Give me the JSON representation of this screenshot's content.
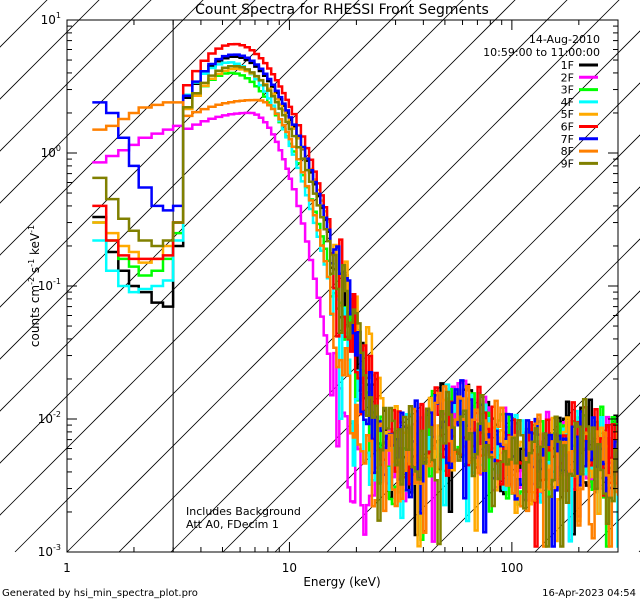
{
  "chart_data": {
    "type": "line",
    "title": "Count Spectra for RHESSI Front Segments",
    "xlabel": "Energy (keV)",
    "ylabel_parts": {
      "pre": "counts cm",
      "e1": "-2",
      "mid": " s",
      "e2": "-1",
      "post": " keV",
      "e3": "-1"
    },
    "x_scale": "log",
    "y_scale": "log",
    "xlim": [
      1.0,
      300.0
    ],
    "ylim": [
      0.001,
      10.0
    ],
    "x_ticks": [
      {
        "value": 1,
        "label": "1"
      },
      {
        "value": 10,
        "label": "10"
      },
      {
        "value": 100,
        "label": "100"
      }
    ],
    "y_ticks": [
      {
        "value": 0.001,
        "base": "10",
        "exp": "-3"
      },
      {
        "value": 0.01,
        "base": "10",
        "exp": "-2"
      },
      {
        "value": 0.1,
        "base": "10",
        "exp": "-1"
      },
      {
        "value": 1,
        "base": "10",
        "exp": "0"
      },
      {
        "value": 10,
        "base": "10",
        "exp": "1"
      }
    ],
    "hatched_region_kev": [
      1.0,
      3.0
    ],
    "date": "14-Aug-2010",
    "time_range": "10:59:00 to 11:00:00",
    "annotations": [
      "Includes Background",
      "Att A0, FDecim 1"
    ],
    "series": [
      {
        "name": "1F",
        "color": "#000000",
        "seed": 11,
        "low_kev": [
          1.3,
          1.5,
          1.7,
          1.9,
          2.1,
          2.4,
          2.7,
          3.0
        ],
        "low": [
          0.33,
          0.18,
          0.13,
          0.1,
          0.09,
          0.075,
          0.07,
          0.2
        ],
        "peak_kev": 5.5,
        "peak": 5.3,
        "w_lo": 0.42,
        "w_hi": 0.4,
        "knee_kev": 7.0
      },
      {
        "name": "2F",
        "color": "#ff00ff",
        "seed": 22,
        "low_kev": [
          1.3,
          1.5,
          1.7,
          1.9,
          2.1,
          2.4,
          2.7,
          3.0
        ],
        "low": [
          0.85,
          0.95,
          1.05,
          1.15,
          1.3,
          1.4,
          1.5,
          1.6
        ],
        "peak_kev": 6.5,
        "peak": 2.0,
        "w_lo": 0.9,
        "w_hi": 0.28,
        "knee_kev": 9.5
      },
      {
        "name": "3F",
        "color": "#00ff00",
        "seed": 33,
        "low_kev": [
          1.3,
          1.5,
          1.7,
          1.9,
          2.1,
          2.4,
          2.7,
          3.0
        ],
        "low": [
          0.3,
          0.22,
          0.16,
          0.14,
          0.12,
          0.13,
          0.16,
          0.25
        ],
        "peak_kev": 5.3,
        "peak": 4.0,
        "w_lo": 0.42,
        "w_hi": 0.4,
        "knee_kev": 7.0
      },
      {
        "name": "4F",
        "color": "#00ffff",
        "seed": 44,
        "low_kev": [
          1.3,
          1.5,
          1.7,
          1.9,
          2.1,
          2.4,
          2.7,
          3.0
        ],
        "low": [
          0.22,
          0.13,
          0.1,
          0.09,
          0.095,
          0.1,
          0.11,
          0.22
        ],
        "peak_kev": 5.2,
        "peak": 4.8,
        "w_lo": 0.42,
        "w_hi": 0.38,
        "knee_kev": 7.0
      },
      {
        "name": "5F",
        "color": "#ffaa00",
        "seed": 55,
        "low_kev": [
          1.3,
          1.5,
          1.7,
          1.9,
          2.1,
          2.4,
          2.7,
          3.0
        ],
        "low": [
          0.3,
          0.25,
          0.2,
          0.18,
          0.15,
          0.16,
          0.2,
          0.3
        ],
        "peak_kev": 5.6,
        "peak": 4.3,
        "w_lo": 0.44,
        "w_hi": 0.42,
        "knee_kev": 7.0
      },
      {
        "name": "6F",
        "color": "#ff0000",
        "seed": 66,
        "low_kev": [
          1.3,
          1.5,
          1.7,
          1.9,
          2.1,
          2.4,
          2.7,
          3.0
        ],
        "low": [
          0.4,
          0.22,
          0.17,
          0.16,
          0.16,
          0.16,
          0.17,
          0.3
        ],
        "peak_kev": 5.5,
        "peak": 6.6,
        "w_lo": 0.42,
        "w_hi": 0.4,
        "knee_kev": 7.0
      },
      {
        "name": "7F",
        "color": "#0000ff",
        "seed": 77,
        "low_kev": [
          1.3,
          1.5,
          1.7,
          1.9,
          2.1,
          2.4,
          2.7,
          3.0
        ],
        "low": [
          2.4,
          2.0,
          1.3,
          0.8,
          0.55,
          0.4,
          0.37,
          0.4
        ],
        "peak_kev": 5.5,
        "peak": 5.5,
        "w_lo": 0.42,
        "w_hi": 0.4,
        "knee_kev": 7.0
      },
      {
        "name": "8F",
        "color": "#ff8000",
        "seed": 88,
        "low_kev": [
          1.3,
          1.5,
          1.7,
          1.9,
          2.1,
          2.4,
          2.7,
          3.0
        ],
        "low": [
          1.5,
          1.6,
          1.8,
          2.0,
          2.2,
          2.3,
          2.4,
          2.4
        ],
        "peak_kev": 7.0,
        "peak": 2.5,
        "w_lo": 1.0,
        "w_hi": 0.3,
        "knee_kev": 8.5
      },
      {
        "name": "9F",
        "color": "#808000",
        "seed": 99,
        "low_kev": [
          1.3,
          1.5,
          1.7,
          1.9,
          2.1,
          2.4,
          2.7,
          3.0
        ],
        "low": [
          0.65,
          0.45,
          0.32,
          0.26,
          0.22,
          0.2,
          0.22,
          0.3
        ],
        "peak_kev": 5.5,
        "peak": 4.5,
        "w_lo": 0.42,
        "w_hi": 0.4,
        "knee_kev": 7.0
      }
    ]
  },
  "footer": {
    "left": "Generated by hsi_min_spectra_plot.pro",
    "right": "16-Apr-2023 04:54"
  }
}
